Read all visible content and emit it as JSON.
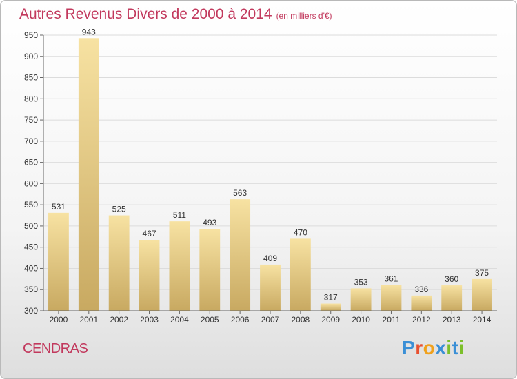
{
  "page": {
    "title": "Autres Revenus Divers de 2000 à 2014",
    "title_unit": "(en milliers d'€)",
    "commune": "CENDRAS",
    "brand_letters": [
      {
        "ch": "P",
        "color": "#3a8fd6"
      },
      {
        "ch": "r",
        "color": "#e8502f"
      },
      {
        "ch": "o",
        "color": "#f0a11c"
      },
      {
        "ch": "x",
        "color": "#3a8fd6"
      },
      {
        "ch": "i",
        "color": "#7cbf2b"
      },
      {
        "ch": "t",
        "color": "#3a8fd6"
      },
      {
        "ch": "i",
        "color": "#7cbf2b"
      }
    ],
    "title_color": "#c2395d"
  },
  "chart_data": {
    "type": "bar",
    "categories": [
      "2000",
      "2001",
      "2002",
      "2003",
      "2004",
      "2005",
      "2006",
      "2007",
      "2008",
      "2009",
      "2010",
      "2011",
      "2012",
      "2013",
      "2014"
    ],
    "values": [
      531,
      943,
      525,
      467,
      511,
      493,
      563,
      409,
      470,
      317,
      353,
      361,
      336,
      360,
      375
    ],
    "ylim": [
      300,
      950
    ],
    "yticks": [
      300,
      350,
      400,
      450,
      500,
      550,
      600,
      650,
      700,
      750,
      800,
      850,
      900,
      950
    ],
    "grid": true,
    "bar_color_light": "#f7e2a2",
    "bar_color_dark": "#c8a961"
  }
}
